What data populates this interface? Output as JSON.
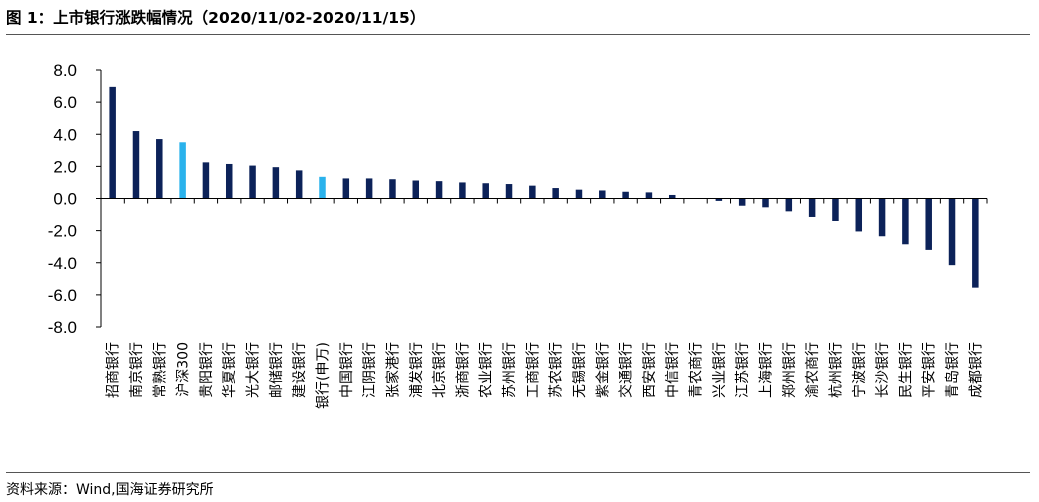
{
  "header": {
    "title": "图 1：上市银行涨跌幅情况（2020/11/02-2020/11/15）"
  },
  "footer": {
    "source": "资料来源：Wind,国海证券研究所"
  },
  "colors": {
    "bank_bar": "#0c2259",
    "benchmark_bar": "#2ab2ec",
    "axis": "#000000",
    "rule": "#555555"
  },
  "chart_data": {
    "type": "bar",
    "title": "",
    "xlabel": "",
    "ylabel": "",
    "ylim": [
      -8.0,
      8.0
    ],
    "yticks": [
      "8.0",
      "6.0",
      "4.0",
      "2.0",
      "0.0",
      "-2.0",
      "-4.0",
      "-6.0",
      "-8.0"
    ],
    "grid": false,
    "legend": "none",
    "categories": [
      "招商银行",
      "南京银行",
      "常熟银行",
      "沪深300",
      "贵阳银行",
      "华夏银行",
      "光大银行",
      "邮储银行",
      "建设银行",
      "银行(申万)",
      "中国银行",
      "江阴银行",
      "张家港行",
      "浦发银行",
      "北京银行",
      "浙商银行",
      "农业银行",
      "苏州银行",
      "工商银行",
      "苏农银行",
      "无锡银行",
      "紫金银行",
      "交通银行",
      "西安银行",
      "中信银行",
      "青农商行",
      "兴业银行",
      "江苏银行",
      "上海银行",
      "郑州银行",
      "渝农商行",
      "杭州银行",
      "宁波银行",
      "长沙银行",
      "民生银行",
      "平安银行",
      "青岛银行",
      "成都银行"
    ],
    "values": [
      6.95,
      4.2,
      3.7,
      3.5,
      2.25,
      2.15,
      2.05,
      1.95,
      1.75,
      1.35,
      1.25,
      1.25,
      1.2,
      1.12,
      1.08,
      1.0,
      0.95,
      0.9,
      0.8,
      0.65,
      0.55,
      0.5,
      0.42,
      0.38,
      0.22,
      0.0,
      -0.15,
      -0.45,
      -0.55,
      -0.8,
      -1.15,
      -1.4,
      -2.05,
      -2.35,
      -2.85,
      -3.2,
      -4.15,
      -5.55
    ],
    "highlighted": [
      "沪深300",
      "银行(申万)"
    ]
  }
}
